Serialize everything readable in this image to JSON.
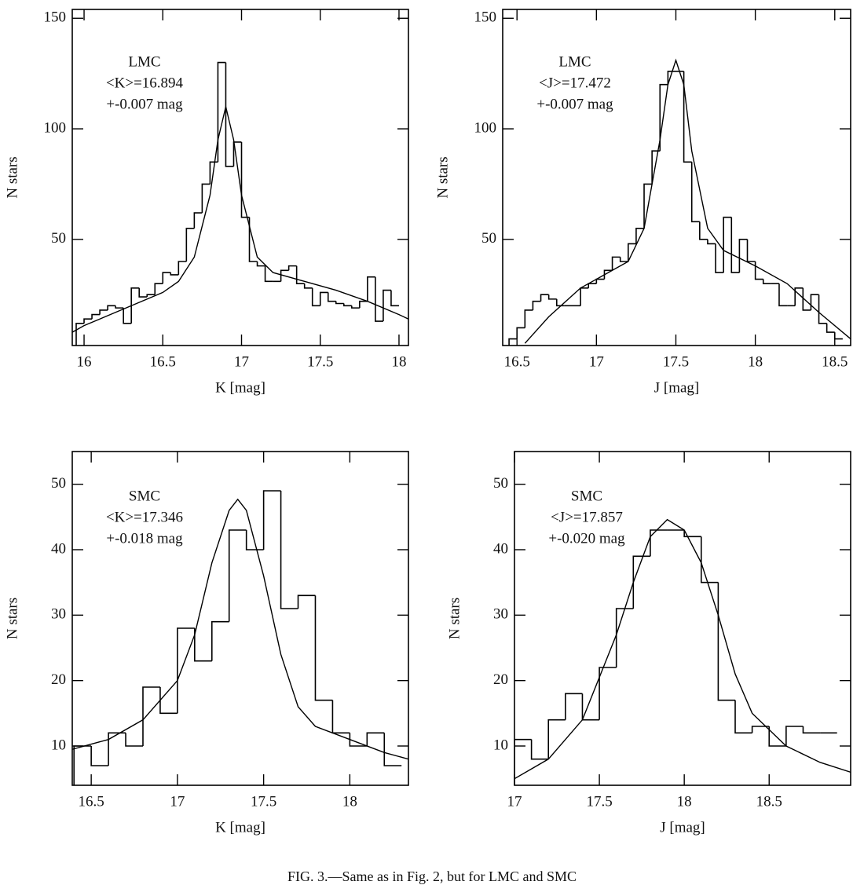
{
  "chart_data": [
    {
      "type": "histogram",
      "color": "#000000",
      "xlabel": "K [mag]",
      "ylabel": "N stars",
      "annotation": [
        "LMC",
        "<K>=16.894",
        "+-0.007 mag"
      ],
      "xlim": [
        15.925,
        18.06
      ],
      "ylim": [
        2,
        154
      ],
      "xticks": [
        16,
        16.5,
        17,
        17.5,
        18
      ],
      "yticks": [
        50,
        100,
        150
      ],
      "bins": [
        15.95,
        16.0,
        16.05,
        16.1,
        16.15,
        16.2,
        16.25,
        16.3,
        16.35,
        16.4,
        16.45,
        16.5,
        16.55,
        16.6,
        16.65,
        16.7,
        16.75,
        16.8,
        16.85,
        16.9,
        16.95,
        17.0,
        17.05,
        17.1,
        17.15,
        17.2,
        17.25,
        17.3,
        17.35,
        17.4,
        17.45,
        17.5,
        17.55,
        17.6,
        17.65,
        17.7,
        17.75,
        17.8,
        17.85,
        17.9,
        17.95,
        18.0
      ],
      "counts": [
        12,
        14,
        16,
        18,
        20,
        19,
        12,
        28,
        24,
        25,
        30,
        35,
        34,
        40,
        55,
        62,
        75,
        85,
        130,
        83,
        94,
        60,
        40,
        38,
        31,
        31,
        36,
        38,
        30,
        28,
        20,
        26,
        22,
        21,
        20,
        19,
        22,
        33,
        13,
        27,
        20
      ],
      "fit_x": [
        15.925,
        16.0,
        16.2,
        16.4,
        16.5,
        16.6,
        16.7,
        16.8,
        16.85,
        16.9,
        16.95,
        17.0,
        17.1,
        17.2,
        17.4,
        17.6,
        17.8,
        18.0,
        18.06
      ],
      "fit_values": [
        8,
        11,
        17,
        23,
        26,
        31,
        42,
        70,
        95,
        110,
        95,
        70,
        42,
        35,
        31,
        27,
        22,
        16,
        14
      ]
    },
    {
      "type": "histogram",
      "color": "#000000",
      "xlabel": "J [mag]",
      "ylabel": "N stars",
      "annotation": [
        "LMC",
        "<J>=17.472",
        "+-0.007 mag"
      ],
      "xlim": [
        16.41,
        18.6
      ],
      "ylim": [
        2,
        154
      ],
      "xticks": [
        16.5,
        17,
        17.5,
        18,
        18.5
      ],
      "yticks": [
        50,
        100,
        150
      ],
      "bins": [
        16.45,
        16.5,
        16.55,
        16.6,
        16.65,
        16.7,
        16.75,
        16.8,
        16.85,
        16.9,
        16.95,
        17.0,
        17.05,
        17.1,
        17.15,
        17.2,
        17.25,
        17.3,
        17.35,
        17.4,
        17.45,
        17.5,
        17.55,
        17.6,
        17.65,
        17.7,
        17.75,
        17.8,
        17.85,
        17.9,
        17.95,
        18.0,
        18.05,
        18.1,
        18.15,
        18.2,
        18.25,
        18.3,
        18.35,
        18.4,
        18.45,
        18.5,
        18.55
      ],
      "counts": [
        5,
        10,
        18,
        22,
        25,
        23,
        20,
        20,
        20,
        28,
        30,
        32,
        36,
        42,
        40,
        48,
        55,
        75,
        90,
        120,
        126,
        126,
        85,
        58,
        50,
        48,
        35,
        60,
        35,
        50,
        40,
        32,
        30,
        30,
        20,
        20,
        28,
        18,
        25,
        12,
        8,
        5
      ],
      "fit_x": [
        16.55,
        16.7,
        16.9,
        17.1,
        17.2,
        17.3,
        17.4,
        17.45,
        17.5,
        17.55,
        17.6,
        17.7,
        17.8,
        18.0,
        18.2,
        18.4,
        18.6
      ],
      "fit_values": [
        3,
        15,
        28,
        36,
        40,
        55,
        95,
        120,
        131,
        120,
        90,
        55,
        45,
        38,
        30,
        17,
        5
      ]
    },
    {
      "type": "histogram",
      "color": "#000000",
      "xlabel": "K [mag]",
      "ylabel": "N stars",
      "annotation": [
        "SMC",
        "<K>=17.346",
        "+-0.018 mag"
      ],
      "xlim": [
        16.39,
        18.34
      ],
      "ylim": [
        4,
        55
      ],
      "xticks": [
        16.5,
        17,
        17.5,
        18
      ],
      "yticks": [
        10,
        20,
        30,
        40,
        50
      ],
      "bins": [
        16.4,
        16.5,
        16.6,
        16.7,
        16.8,
        16.9,
        17.0,
        17.1,
        17.2,
        17.3,
        17.4,
        17.5,
        17.6,
        17.7,
        17.8,
        17.9,
        18.0,
        18.1,
        18.2,
        18.3
      ],
      "counts": [
        10,
        7,
        12,
        10,
        19,
        15,
        28,
        23,
        29,
        43,
        40,
        49,
        31,
        33,
        17,
        12,
        10,
        12,
        7
      ],
      "fit_x": [
        16.39,
        16.6,
        16.8,
        17.0,
        17.1,
        17.2,
        17.3,
        17.35,
        17.4,
        17.5,
        17.6,
        17.7,
        17.8,
        18.0,
        18.2,
        18.34
      ],
      "fit_values": [
        9.5,
        11,
        14,
        20,
        27,
        38,
        46,
        47.7,
        46,
        36,
        24,
        16,
        13,
        11,
        9,
        8
      ]
    },
    {
      "type": "histogram",
      "color": "#000000",
      "xlabel": "J [mag]",
      "ylabel": "N stars",
      "annotation": [
        "SMC",
        "<J>=17.857",
        "+-0.020 mag"
      ],
      "xlim": [
        17,
        18.98
      ],
      "ylim": [
        4,
        55
      ],
      "xticks": [
        17,
        17.5,
        18,
        18.5
      ],
      "yticks": [
        10,
        20,
        30,
        40,
        50
      ],
      "bins": [
        17.0,
        17.1,
        17.2,
        17.3,
        17.4,
        17.5,
        17.6,
        17.7,
        17.8,
        17.9,
        18.0,
        18.1,
        18.2,
        18.3,
        18.4,
        18.5,
        18.6,
        18.7,
        18.8,
        18.9
      ],
      "counts": [
        11,
        8,
        14,
        18,
        14,
        22,
        31,
        39,
        43,
        43,
        42,
        35,
        17,
        12,
        13,
        10,
        13,
        12,
        12
      ],
      "fit_x": [
        17.0,
        17.2,
        17.4,
        17.6,
        17.7,
        17.8,
        17.9,
        18.0,
        18.1,
        18.2,
        18.3,
        18.4,
        18.6,
        18.8,
        18.98
      ],
      "fit_values": [
        5,
        8,
        14,
        27,
        35,
        42,
        44.6,
        43,
        38,
        30,
        21,
        15,
        10,
        7.5,
        6
      ]
    }
  ],
  "caption": "FIG. 3.—Same as in Fig. 2, but for LMC and SMC"
}
